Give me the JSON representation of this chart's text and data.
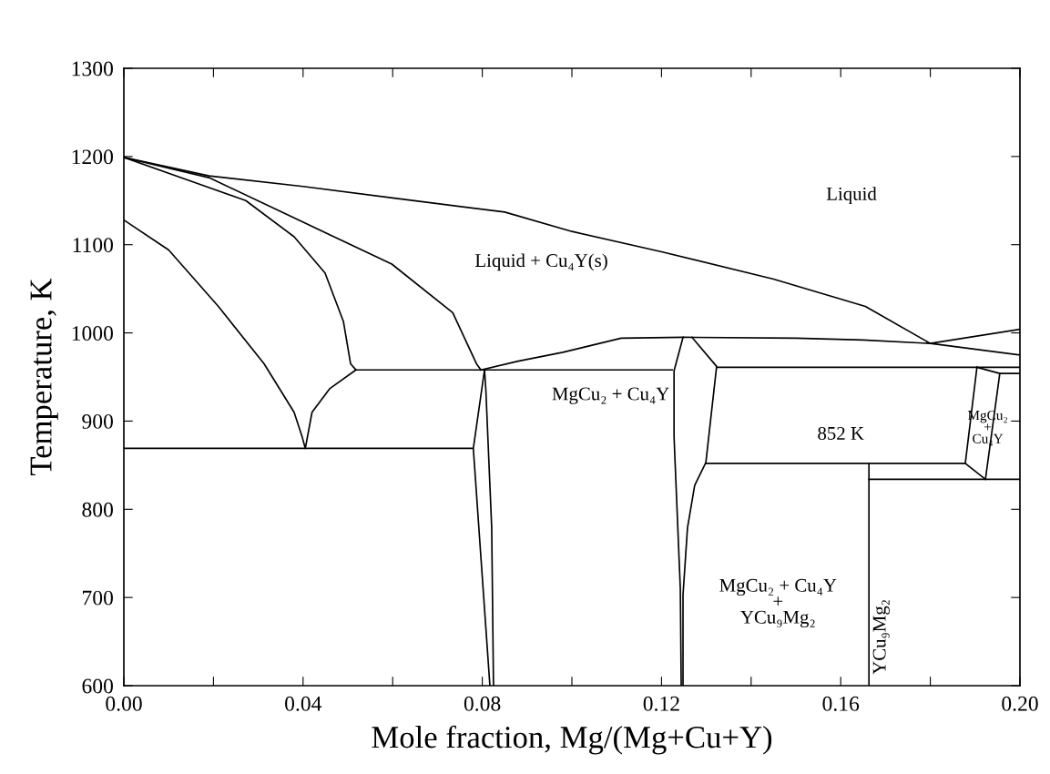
{
  "chart_data": {
    "type": "line",
    "xlabel": "Mole fraction, Mg/(Mg+Cu+Y)",
    "ylabel": "Temperature, K",
    "xlim": [
      0,
      0.2
    ],
    "ylim": [
      600,
      1300
    ],
    "xticks": [
      {
        "value": 0,
        "label": "0.00"
      },
      {
        "value": 0.02,
        "label": null
      },
      {
        "value": 0.04,
        "label": "0.04"
      },
      {
        "value": 0.06,
        "label": null
      },
      {
        "value": 0.08,
        "label": "0.08"
      },
      {
        "value": 0.1,
        "label": null
      },
      {
        "value": 0.12,
        "label": "0.12"
      },
      {
        "value": 0.14,
        "label": null
      },
      {
        "value": 0.16,
        "label": "0.16"
      },
      {
        "value": 0.18,
        "label": null
      },
      {
        "value": 0.2,
        "label": "0.20"
      }
    ],
    "yticks": [
      600,
      700,
      800,
      900,
      1000,
      1100,
      1200,
      1300
    ],
    "grid": false,
    "legend": false,
    "marker": "none",
    "line_style": "solid",
    "series": [
      {
        "color": "#000000",
        "x": [
          0,
          0.019,
          0.04,
          0.06,
          0.085,
          0.1,
          0.12,
          0.145,
          0.1655,
          0.18,
          0.2
        ],
        "values": [
          1199,
          1178,
          1166,
          1153,
          1137,
          1115,
          1092,
          1061,
          1030,
          988,
          975
        ]
      },
      {
        "color": "#000000",
        "x": [
          0,
          0.019,
          0.0394,
          0.0598,
          0.0734,
          0.0787,
          0.0797
        ],
        "values": [
          1199,
          1176,
          1127,
          1078,
          1023,
          965,
          958
        ]
      },
      {
        "color": "#000000",
        "x": [
          0,
          0.015,
          0.0272,
          0.038,
          0.0449,
          0.049,
          0.0506,
          0.0518
        ],
        "values": [
          1199,
          1172,
          1150,
          1109,
          1068,
          1013,
          965,
          958
        ]
      },
      {
        "color": "#000000",
        "x": [
          0,
          0.01,
          0.0211,
          0.0313,
          0.038,
          0.0398,
          0.0405,
          0.042,
          0.046,
          0.0518
        ],
        "values": [
          1128,
          1094,
          1030,
          965,
          910,
          882,
          869,
          910,
          937,
          958
        ]
      },
      {
        "color": "#000000",
        "x": [
          0.0518,
          0.1224
        ],
        "values": [
          958,
          958
        ]
      },
      {
        "color": "#000000",
        "x": [
          0.0797,
          0.088,
          0.098,
          0.111,
          0.125,
          0.15,
          0.165,
          0.18,
          0.2
        ],
        "values": [
          958,
          968,
          978,
          994,
          995,
          994,
          992,
          988,
          1004
        ]
      },
      {
        "color": "#000000",
        "x": [
          0,
          0.0778
        ],
        "values": [
          869,
          869
        ]
      },
      {
        "color": "#000000",
        "x": [
          0.0805,
          0.078,
          0.0797,
          0.0817
        ],
        "values": [
          958,
          869,
          745,
          600
        ]
      },
      {
        "color": "#000000",
        "x": [
          0.0805,
          0.0808,
          0.0821,
          0.0825
        ],
        "values": [
          958,
          935,
          779,
          600
        ]
      },
      {
        "color": "#000000",
        "x": [
          0.1248,
          0.1228,
          0.1228,
          0.1242,
          0.1244
        ],
        "values": [
          995,
          957,
          882,
          710,
          600
        ]
      },
      {
        "color": "#000000",
        "x": [
          0.1268,
          0.1323,
          0.1299,
          0.1274,
          0.1258,
          0.1248,
          0.1248
        ],
        "values": [
          995,
          962,
          853,
          827,
          779,
          703,
          600
        ]
      },
      {
        "color": "#000000",
        "x": [
          0.1323,
          0.2
        ],
        "values": [
          961,
          961
        ]
      },
      {
        "color": "#000000",
        "x": [
          0.1299,
          0.1878
        ],
        "values": [
          852,
          852
        ]
      },
      {
        "color": "#000000",
        "x": [
          0.1663,
          0.1663
        ],
        "values": [
          852,
          600
        ]
      },
      {
        "color": "#000000",
        "x": [
          0.1663,
          0.2
        ],
        "values": [
          834,
          834
        ]
      },
      {
        "color": "#000000",
        "x": [
          0.1904,
          0.1878,
          0.1923
        ],
        "values": [
          961,
          852,
          834
        ]
      },
      {
        "color": "#000000",
        "x": [
          0.1904,
          0.1955,
          0.2
        ],
        "values": [
          961,
          954,
          954
        ]
      },
      {
        "color": "#000000",
        "x": [
          0.1955,
          0.1923
        ],
        "values": [
          954,
          834
        ]
      }
    ],
    "annotations": [
      "Liquid",
      "Liquid + Cu₄Y(s)",
      "MgCu₂ + Cu₄Y",
      "852 K",
      "MgCu₂\n+\nCu₄Y",
      "MgCu₂ + Cu₄Y\n+\nYCu₉Mg₂",
      "YCu₉Mg₂"
    ]
  }
}
